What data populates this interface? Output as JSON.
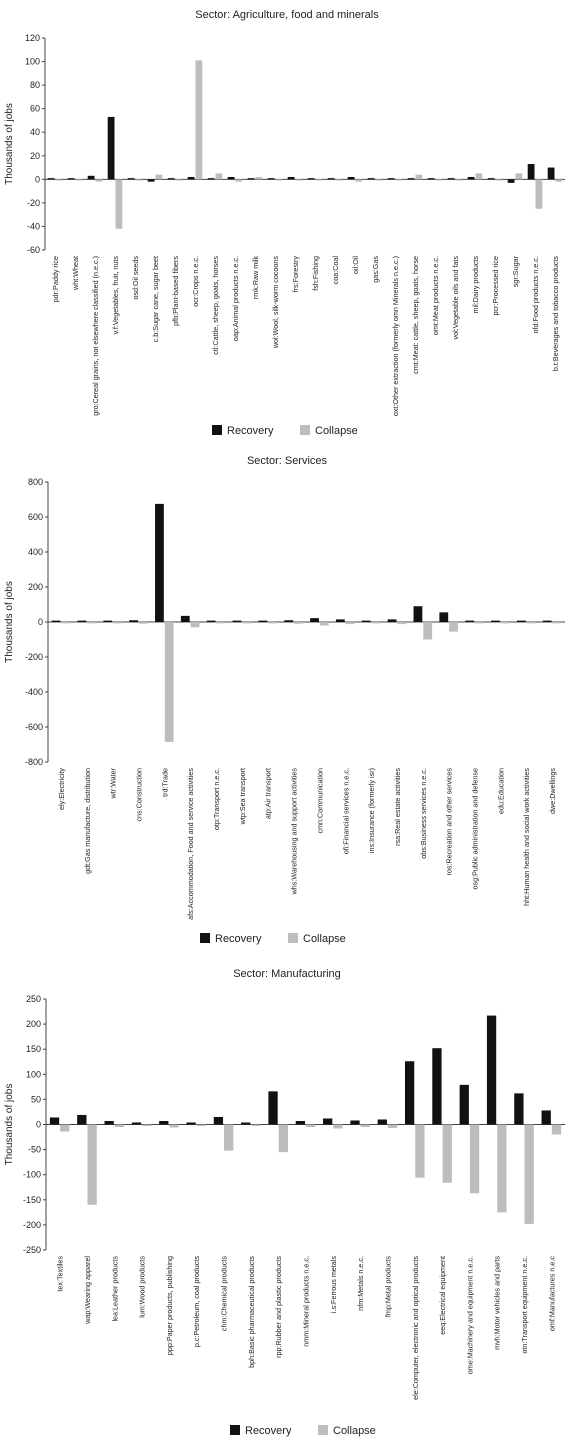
{
  "colors": {
    "recovery": "#111111",
    "collapse": "#bdbdbd"
  },
  "chart_data": [
    {
      "type": "bar",
      "title": "Sector: Agriculture, food and minerals",
      "ylabel": "Thousands of jobs",
      "ylim": [
        -60,
        120
      ],
      "yticks": [
        -60,
        -40,
        -20,
        0,
        20,
        40,
        60,
        80,
        100,
        120
      ],
      "legend": "bottom",
      "categories": [
        "pdr:Paddy rice",
        "wht:Wheat",
        "gro:Cereal grains, not elsewhere classified (n.e.c.)",
        "v.f:Vegetables, fruit, nuts",
        "osd:Oil seeds",
        "c.b:Sugar cane, sugar beet",
        "pfb:Plant-based fibers",
        "ocr:Crops n.e.c.",
        "ctl:Cattle, sheep, goats, horses",
        "oap:Animal products n.e.c.",
        "rmk:Raw milk",
        "wol:Wool, silk-worm cocoons",
        "frs:Forestry",
        "fsh:Fishing",
        "coa:Coal",
        "oil:Oil",
        "gas:Gas",
        "oxt:Other extraction (formerly omn Minerals n.e.c.)",
        "cmt:Meat: cattle, sheep, goats, horse",
        "omt:Meat products n.e.c.",
        "vol:Vegetable oils and fats",
        "mil:Dairy products",
        "pcr:Processed rice",
        "sgr:Sugar",
        "ofd:Food products n.e.c.",
        "b.t:Beverages and tobacco products"
      ],
      "series": [
        {
          "name": "Recovery",
          "values": [
            1,
            1,
            3,
            53,
            1,
            -2,
            1,
            2,
            1,
            2,
            1,
            1,
            2,
            1,
            1,
            2,
            1,
            1,
            1,
            1,
            1,
            2,
            1,
            -3,
            13,
            10
          ]
        },
        {
          "name": "Collapse",
          "values": [
            -1,
            -1,
            -2,
            -42,
            -1,
            4,
            -1,
            101,
            5,
            -2,
            2,
            -1,
            -1,
            -1,
            -1,
            -2,
            -1,
            -1,
            4,
            -1,
            -1,
            5,
            -1,
            5,
            -25,
            -2
          ]
        }
      ]
    },
    {
      "type": "bar",
      "title": "Sector: Services",
      "ylabel": "Thousands of jobs",
      "ylim": [
        -800,
        800
      ],
      "yticks": [
        -800,
        -600,
        -400,
        -200,
        0,
        200,
        400,
        600,
        800
      ],
      "legend": "bottom",
      "categories": [
        "ely:Electricity",
        "gdt:Gas manufacture, distribution",
        "wtr:Water",
        "cns:Construction",
        "trd:Trade",
        "afs:Accommodation, Food and service activities",
        "otp:Transport n.e.c.",
        "wtp:Sea transport",
        "atp:Air transport",
        "whs:Warehousing and support activities",
        "cmn:Communication",
        "ofi:Financial services n.e.c.",
        "ins:Insurance (formerly isr)",
        "rsa:Real estate activities",
        "obs:Business services n.e.c.",
        "ros:Recreation and other services",
        "osg:Public administration and defense",
        "edu:Education",
        "hht:Human health and social work activities",
        "dwe:Dwellings"
      ],
      "series": [
        {
          "name": "Recovery",
          "values": [
            8,
            8,
            8,
            10,
            675,
            35,
            8,
            8,
            8,
            10,
            22,
            15,
            8,
            15,
            90,
            55,
            8,
            8,
            8,
            8
          ]
        },
        {
          "name": "Collapse",
          "values": [
            -8,
            -8,
            -8,
            -10,
            -685,
            -30,
            -8,
            -8,
            -8,
            -10,
            -20,
            -12,
            -8,
            -12,
            -100,
            -55,
            -8,
            -8,
            -8,
            -8
          ]
        }
      ]
    },
    {
      "type": "bar",
      "title": "Sector: Manufacturing",
      "ylabel": "Thousands of jobs",
      "ylim": [
        -250,
        250
      ],
      "yticks": [
        -250,
        -200,
        -150,
        -100,
        -50,
        0,
        50,
        100,
        150,
        200,
        250
      ],
      "legend": "bottom",
      "categories": [
        "tex:Textiles",
        "wap:Wearing apparel",
        "lea:Leather products",
        "lum:Wood products",
        "ppp:Paper products, publishing",
        "p.c:Petroleum, coal products",
        "chm:Chemical products",
        "bph:Basic pharmaceutical products",
        "rpp:Rubber and plastic products",
        "nmm:Mineral products n.e.c.",
        "i.s:Ferrous metals",
        "nfm:Metals n.e.c.",
        "fmp:Metal products",
        "ele:Computer, electronic and optical products",
        "eeq:Electrical equipment",
        "ome:Machinery and equipment n.e.c.",
        "mvh:Motor vehicles and parts",
        "otn:Transport equipment n.e.c.",
        "omf:Manufactures n.e.c"
      ],
      "series": [
        {
          "name": "Recovery",
          "values": [
            14,
            19,
            7,
            4,
            7,
            4,
            15,
            4,
            66,
            7,
            12,
            8,
            10,
            126,
            152,
            79,
            217,
            62,
            28
          ]
        },
        {
          "name": "Collapse",
          "values": [
            -14,
            -160,
            -5,
            -3,
            -6,
            -3,
            -52,
            -3,
            -55,
            -5,
            -8,
            -5,
            -7,
            -106,
            -116,
            -137,
            -175,
            -198,
            -20
          ]
        }
      ]
    }
  ]
}
